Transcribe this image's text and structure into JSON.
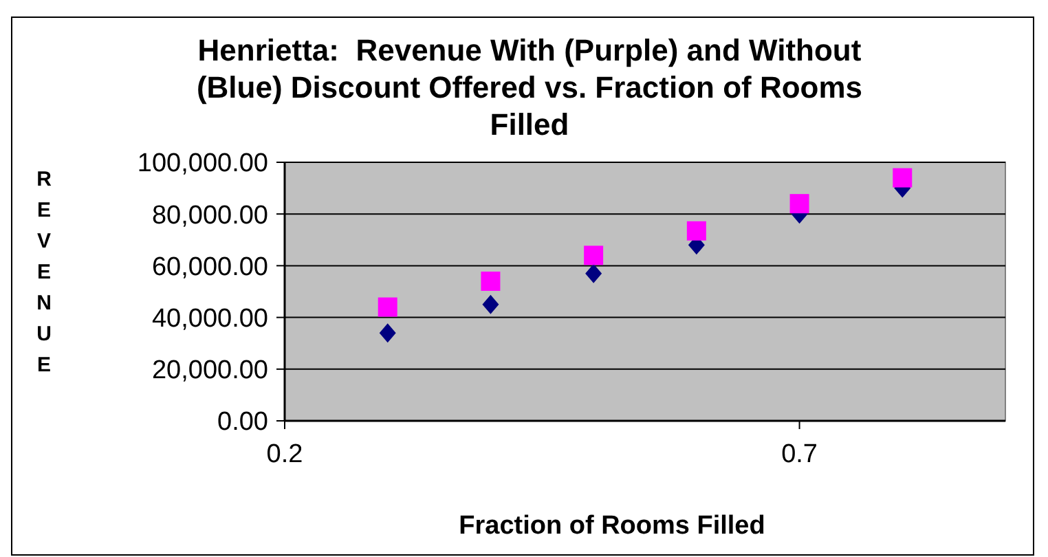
{
  "chart_data": {
    "type": "scatter",
    "title": "Henrietta:  Revenue With (Purple) and Without (Blue) Discount Offered vs. Fraction of Rooms Filled",
    "xlabel": "Fraction of Rooms Filled",
    "ylabel": "REVENUE",
    "x": [
      0.3,
      0.4,
      0.5,
      0.6,
      0.7,
      0.8
    ],
    "series": [
      {
        "color": "#000080",
        "marker": "diamond",
        "values": [
          34000,
          45000,
          57000,
          68000,
          80000,
          90000
        ]
      },
      {
        "color": "#ff00ff",
        "marker": "square",
        "values": [
          44000,
          54000,
          64000,
          73500,
          84000,
          94000
        ]
      }
    ],
    "xlim": [
      0.2,
      0.9
    ],
    "xticks": [
      0.2,
      0.7
    ],
    "ylim": [
      0,
      100000
    ],
    "yticks": [
      {
        "value": 0,
        "label": "0.00"
      },
      {
        "value": 20000,
        "label": "20,000.00"
      },
      {
        "value": 40000,
        "label": "40,000.00"
      },
      {
        "value": 60000,
        "label": "60,000.00"
      },
      {
        "value": 80000,
        "label": "80,000.00"
      },
      {
        "value": 100000,
        "label": "100,000.00"
      }
    ],
    "grid": "y"
  }
}
